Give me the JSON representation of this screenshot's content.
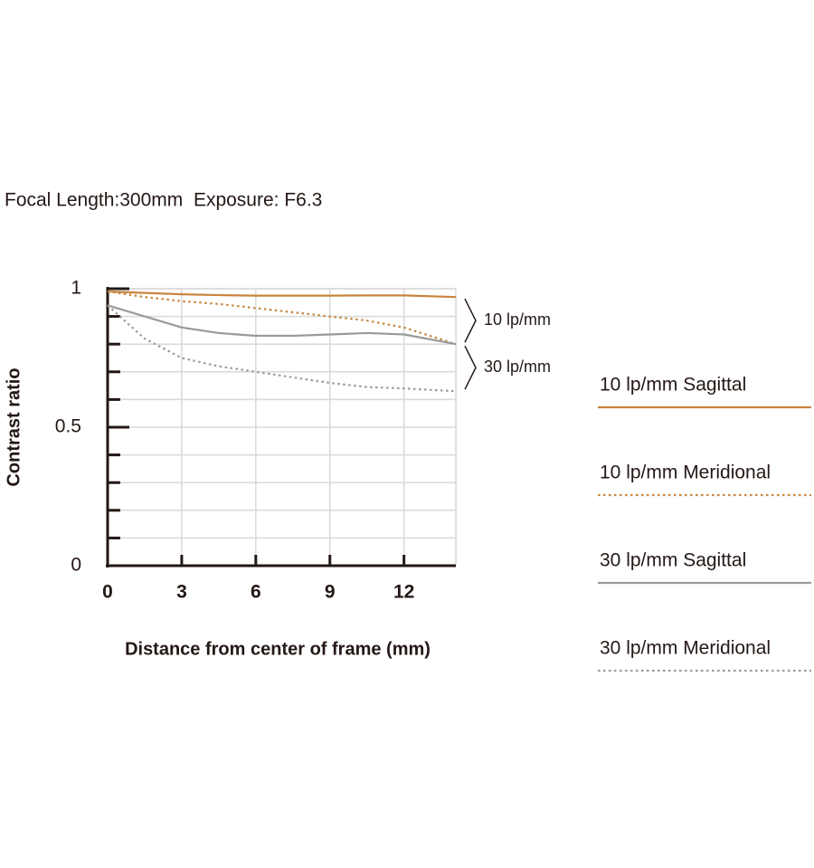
{
  "chart_data": {
    "type": "line",
    "title": "Focal Length:300mm  Exposure: F6.3",
    "x_label": "Distance from center of frame (mm)",
    "y_label": "Contrast ratio",
    "x": [
      0,
      1.5,
      3,
      4.5,
      6,
      7.5,
      9,
      10.5,
      12,
      14.1
    ],
    "series": [
      {
        "name": "10 lp/mm Sagittal",
        "color": "#c8853e",
        "style": "solid",
        "values": [
          0.99,
          0.985,
          0.98,
          0.977,
          0.975,
          0.975,
          0.975,
          0.976,
          0.976,
          0.97
        ]
      },
      {
        "name": "10 lp/mm Meridional",
        "color": "#c8853e",
        "style": "dotted",
        "values": [
          0.99,
          0.97,
          0.955,
          0.945,
          0.93,
          0.915,
          0.9,
          0.885,
          0.86,
          0.8
        ]
      },
      {
        "name": "30 lp/mm Sagittal",
        "color": "#9a9a9a",
        "style": "solid",
        "values": [
          0.94,
          0.9,
          0.86,
          0.84,
          0.83,
          0.83,
          0.835,
          0.84,
          0.835,
          0.8
        ]
      },
      {
        "name": "30 lp/mm Meridional",
        "color": "#9a9a9a",
        "style": "dotted",
        "values": [
          0.94,
          0.82,
          0.75,
          0.72,
          0.7,
          0.68,
          0.66,
          0.645,
          0.64,
          0.63
        ]
      }
    ],
    "annotations": [
      "10 lp/mm",
      "30 lp/mm"
    ],
    "xlim": [
      0,
      14.1
    ],
    "ylim": [
      0,
      1
    ],
    "xticks": [
      0,
      3,
      6,
      9,
      12
    ],
    "yticks": [
      0,
      0.5,
      1
    ],
    "yminor": [
      0.1,
      0.2,
      0.3,
      0.4,
      0.6,
      0.7,
      0.8,
      0.9
    ],
    "grid": true,
    "legend": "right"
  }
}
